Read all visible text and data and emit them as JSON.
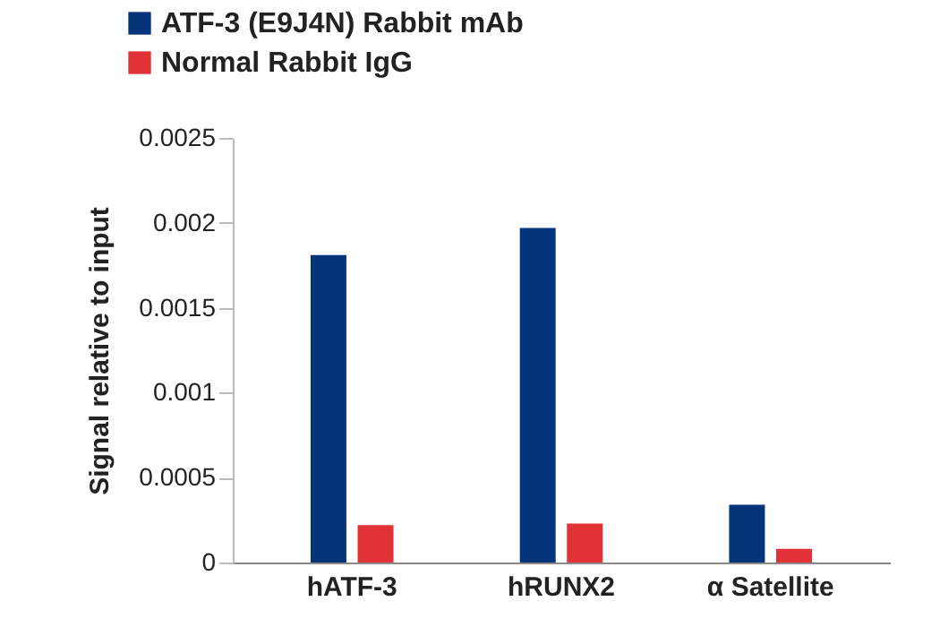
{
  "chart_data": {
    "type": "bar",
    "ylabel": "Signal relative to input",
    "categories": [
      "hATF-3",
      "hRUNX2",
      "α Satellite"
    ],
    "series": [
      {
        "name": "ATF-3 (E9J4N) Rabbit mAb",
        "color": "#06347a",
        "values": [
          0.00181,
          0.00197,
          0.00034
        ]
      },
      {
        "name": "Normal Rabbit IgG",
        "color": "#e03237",
        "values": [
          0.00022,
          0.00023,
          8e-05
        ]
      }
    ],
    "ylim": [
      0,
      0.0025
    ],
    "yticks": [
      0,
      0.0005,
      0.001,
      0.0015,
      0.002,
      0.0025
    ],
    "grid": false,
    "legend": "top left"
  }
}
